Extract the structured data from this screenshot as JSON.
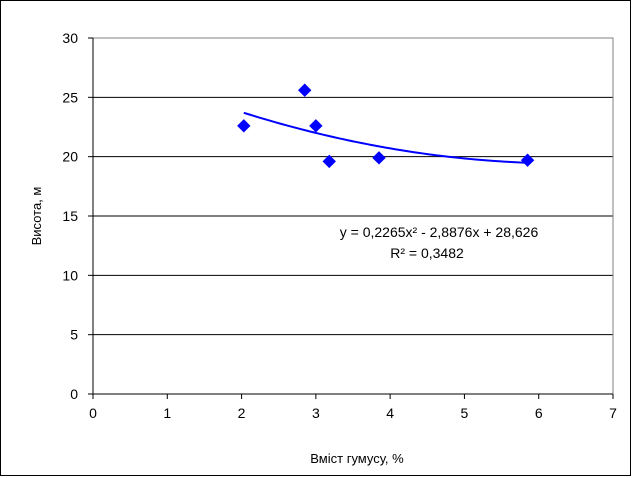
{
  "chart_data": {
    "type": "scatter",
    "title": "",
    "xlabel": "Вміст гумусу, %",
    "ylabel": "Висота, м",
    "xlim": [
      0,
      7
    ],
    "ylim": [
      0,
      30
    ],
    "x_ticks": [
      "0",
      "1",
      "2",
      "3",
      "4",
      "5",
      "6",
      "7"
    ],
    "y_ticks": [
      "0",
      "5",
      "10",
      "15",
      "20",
      "25",
      "30"
    ],
    "grid": "horizontal",
    "legend": "none",
    "marker_color": "#0000ff",
    "trendline_color": "#0000ff",
    "series": [
      {
        "x": [
          2.03,
          2.85,
          3.0,
          3.18,
          3.85,
          5.85
        ],
        "y": [
          22.6,
          25.6,
          22.6,
          19.6,
          19.9,
          19.7
        ]
      }
    ],
    "trendline": {
      "type": "polynomial",
      "coefficients": [
        0.2265,
        -2.8876,
        28.626
      ],
      "x_range": [
        2.03,
        5.85
      ],
      "equation": "y = 0,2265x² - 2,8876x + 28,626",
      "r_squared": "R² = 0,3482"
    }
  }
}
